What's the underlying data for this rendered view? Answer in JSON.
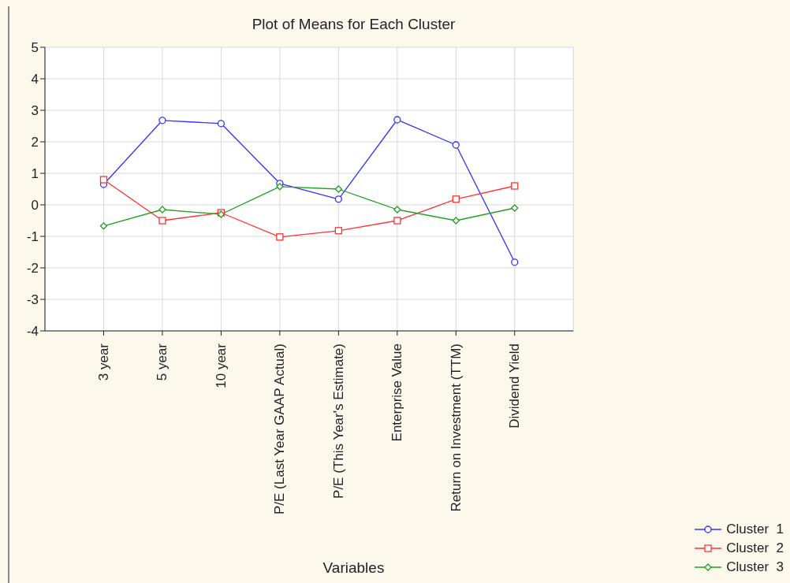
{
  "chart_data": {
    "type": "line",
    "title": "Plot of Means for Each Cluster",
    "xlabel": "Variables",
    "categories": [
      "3 year",
      "5 year",
      "10 year",
      "P/E (Last Year GAAP Actual)",
      "P/E (This Year's Estimate)",
      "Enterprise Value",
      "Return on Investment (TTM)",
      "Dividend Yield"
    ],
    "series": [
      {
        "name": "Cluster  1",
        "color": "#3333ff",
        "marker": "circle",
        "values": [
          0.65,
          2.68,
          2.58,
          0.68,
          0.18,
          2.7,
          1.9,
          -1.82
        ]
      },
      {
        "name": "Cluster  2",
        "color": "#ff3333",
        "marker": "square",
        "values": [
          0.8,
          -0.5,
          -0.25,
          -1.02,
          -0.82,
          -0.5,
          0.18,
          0.6
        ]
      },
      {
        "name": "Cluster  3",
        "color": "#22a022",
        "marker": "diamond",
        "values": [
          -0.67,
          -0.15,
          -0.3,
          0.58,
          0.5,
          -0.15,
          -0.5,
          -0.1
        ]
      }
    ],
    "ylim": [
      -4,
      5
    ],
    "yticks": [
      -4,
      -3,
      -2,
      -1,
      0,
      1,
      2,
      3,
      4,
      5
    ],
    "grid": true,
    "legend": "bottom right",
    "line_style": "solid"
  }
}
